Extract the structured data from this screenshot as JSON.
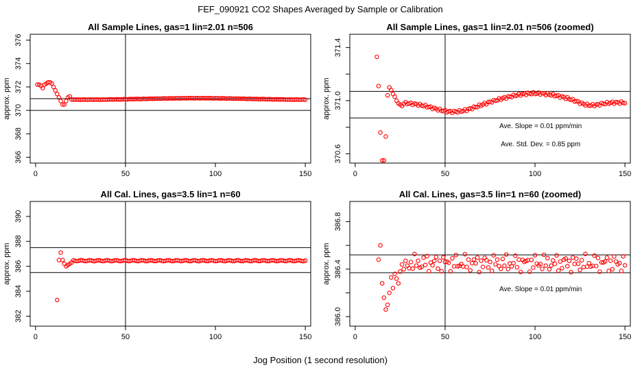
{
  "figure": {
    "title": "FEF_090921  CO2 Shapes Averaged by Sample or Calibration",
    "xlabel": "Jog Position (1 second resolution)"
  },
  "chart_data": [
    {
      "type": "scatter",
      "title": "All Sample Lines, gas=1 lin=2.01 n=506",
      "ylabel": "approx. ppm",
      "xlim": [
        -3,
        153
      ],
      "ylim": [
        365.5,
        376.5
      ],
      "x_ticks": [
        0,
        50,
        100,
        150
      ],
      "y_ticks": [
        366,
        368,
        370,
        372,
        374,
        376
      ],
      "hlines": [
        371,
        370
      ],
      "vline": 50,
      "annotations": [],
      "series": [
        {
          "color": "#ff0000",
          "marker": "open-circle",
          "x": [],
          "y": []
        }
      ]
    },
    {
      "type": "scatter",
      "title": "All Sample Lines, gas=1 lin=2.01 n=506 (zoomed)",
      "ylabel": "approx. ppm",
      "xlim": [
        -3,
        153
      ],
      "ylim": [
        370.53,
        371.5
      ],
      "x_ticks": [
        0,
        50,
        100,
        150
      ],
      "y_ticks": [
        370.6,
        370.8,
        371.0,
        371.2,
        371.4
      ],
      "y_tick_labels": [
        "370.6",
        "",
        "371.0",
        "",
        "371.4"
      ],
      "hlines": [
        371.07,
        370.87
      ],
      "vline": 50,
      "annotations": [
        "Ave. Slope =  0.01  ppm/min",
        "Ave. Std. Dev. =  0.85  ppm"
      ],
      "series": [
        {
          "color": "#ff0000",
          "marker": "open-circle",
          "x": [],
          "y": []
        }
      ]
    },
    {
      "type": "scatter",
      "title": "All Cal. Lines, gas=3.5 lin=1 n=60",
      "ylabel": "approx. ppm",
      "xlim": [
        -3,
        153
      ],
      "ylim": [
        381.2,
        391.2
      ],
      "x_ticks": [
        0,
        50,
        100,
        150
      ],
      "y_ticks": [
        382,
        384,
        386,
        388,
        390
      ],
      "hlines": [
        387.5,
        385.5
      ],
      "vline": 50,
      "annotations": [],
      "series": [
        {
          "color": "#ff0000",
          "marker": "open-circle",
          "x": [],
          "y": []
        }
      ]
    },
    {
      "type": "scatter",
      "title": "All Cal. Lines, gas=3.5 lin=1 n=60 (zoomed)",
      "ylabel": "approx. ppm",
      "xlim": [
        -3,
        153
      ],
      "ylim": [
        385.92,
        386.97
      ],
      "x_ticks": [
        0,
        50,
        100,
        150
      ],
      "y_ticks": [
        386.0,
        386.2,
        386.4,
        386.6,
        386.8
      ],
      "y_tick_labels": [
        "386.0",
        "",
        "386.4",
        "",
        "386.8"
      ],
      "hlines": [
        386.52,
        386.37
      ],
      "vline": 50,
      "annotations": [
        "Ave. Slope =  0.01  ppm/min"
      ],
      "series": [
        {
          "color": "#ff0000",
          "marker": "open-circle",
          "x": [],
          "y": []
        }
      ]
    }
  ]
}
